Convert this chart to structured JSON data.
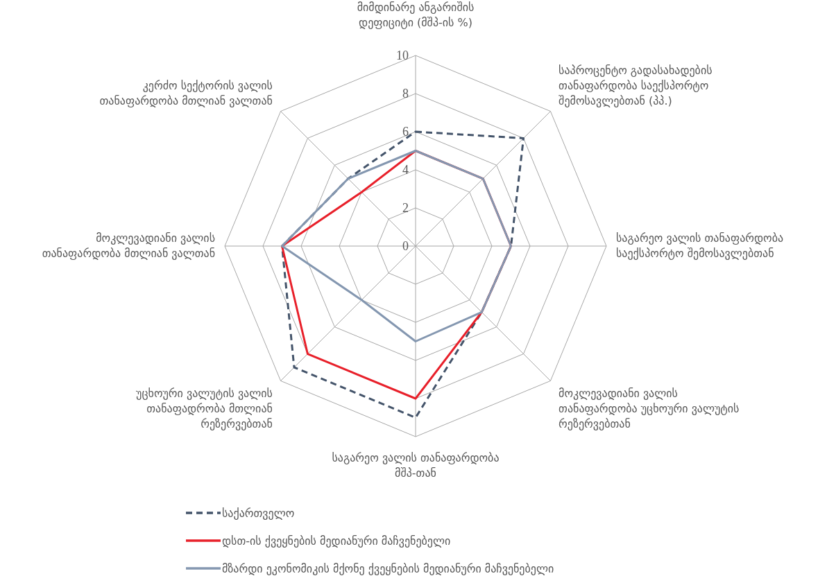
{
  "chart_data": {
    "type": "radar",
    "categories": [
      "მიმდინარე ანგარიშის დეფიციტი (მშპ-ის %)",
      "საპროცენტო გადასახადების თანაფარდობა საექსპორტო შემოსავლებთან (პპ.)",
      "საგარეო ვალის თანაფარდობა საექსპორტო შემოსავლებთან",
      "მოკლევადიანი ვალის თანაფარდობა უცხოური ვალუტის რეზერვებთან",
      "საგარეო ვალის თანაფარდობა მშპ-თან",
      "უცხოური ვალუტის ვალის თანაფადრობა მთლიან რეზერვებთან",
      "მოკლევადიანი ვალის თანაფარდობა მთლიან ვალთან",
      "კერძო სექტორის ვალის თანაფარდობა მთლიან ვალთან"
    ],
    "series": [
      {
        "name": "საქართველო",
        "color": "#44546a",
        "line_style": "dashed",
        "values": [
          6,
          8,
          5,
          4.9,
          9,
          9,
          7,
          5
        ]
      },
      {
        "name": "დსთ-ის ქვეყნების მედიანური მაჩვენებელი",
        "color": "#e8202a",
        "line_style": "solid",
        "values": [
          5,
          5,
          5,
          4.9,
          8,
          8,
          7,
          4
        ]
      },
      {
        "name": "მზარდი ეკონომიკის მქონე ქვეყნების მედიანური მაჩვენებელი",
        "color": "#8497b0",
        "line_style": "solid",
        "values": [
          5,
          5,
          5,
          4.9,
          5,
          4,
          7,
          5
        ]
      }
    ],
    "ylim": [
      0,
      10
    ],
    "yticks": [
      0,
      2,
      4,
      6,
      8,
      10
    ],
    "grid": true,
    "legend": "bottom",
    "marker": "none"
  }
}
